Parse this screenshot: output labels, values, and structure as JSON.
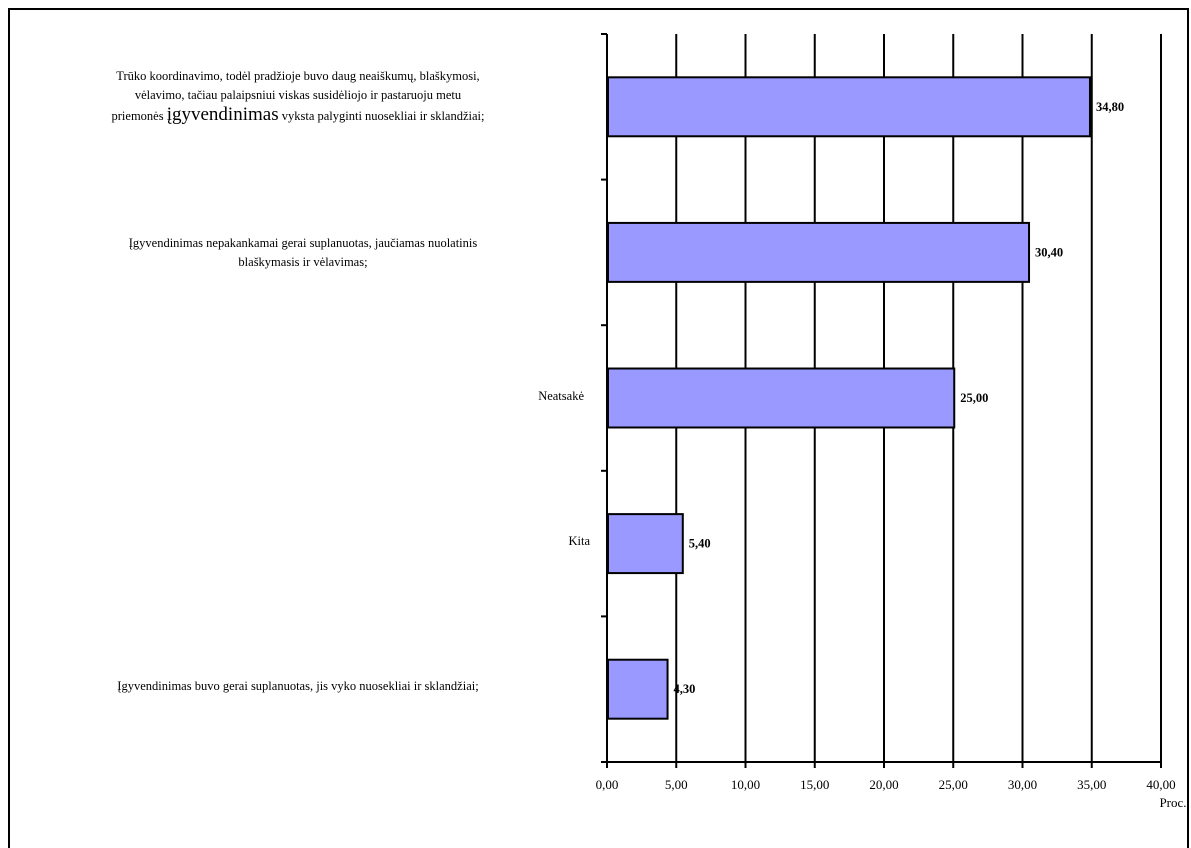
{
  "chart_data": {
    "type": "bar",
    "orientation": "horizontal",
    "categories": [
      "Trūko koordinavimo, todėl pradžioje buvo daug neaiškumų, blaškymosi, vėlavimo, tačiau palaipsniui viskas susidėliojo ir pastaruoju metu priemonės įgyvendinimas vyksta palyginti nuosekliai ir sklandžiai;",
      "Įgyvendinimas nepakankamai gerai suplanuotas, jaučiamas nuolatinis blaškymasis ir vėlavimas;",
      "Neatsakė",
      "Kita",
      "Įgyvendinimas buvo gerai suplanuotas, jis vyko nuosekliai ir sklandžiai;"
    ],
    "values": [
      34.8,
      30.4,
      25.0,
      5.4,
      4.3
    ],
    "value_labels": [
      "34,80",
      "30,40",
      "25,00",
      "5,40",
      "4,30"
    ],
    "xlim": [
      0,
      40
    ],
    "x_ticks": [
      "0,00",
      "5,00",
      "10,00",
      "15,00",
      "20,00",
      "25,00",
      "30,00",
      "35,00",
      "40,00"
    ],
    "xlabel": "Proc.",
    "grid": "vertical",
    "bar_color": "#9999ff"
  },
  "labels": {
    "cat0": {
      "line1": "Trūko koordinavimo, todėl pradžioje buvo daug neaiškumų, blaškymosi,",
      "line2": "vėlavimo, tačiau palaipsniui viskas susidėliojo ir pastaruoju metu",
      "line3a": "priemonės ",
      "line3b": "įgyvendinimas",
      "line3c": " vyksta palyginti nuosekliai ir sklandžiai;"
    },
    "cat1": {
      "line1": "Įgyvendinimas nepakankamai gerai suplanuotas, jaučiamas nuolatinis",
      "line2": "blaškymasis ir vėlavimas;"
    },
    "cat2": "Neatsakė",
    "cat3": "Kita",
    "cat4": "Įgyvendinimas buvo gerai suplanuotas, jis vyko nuosekliai ir sklandžiai;"
  }
}
